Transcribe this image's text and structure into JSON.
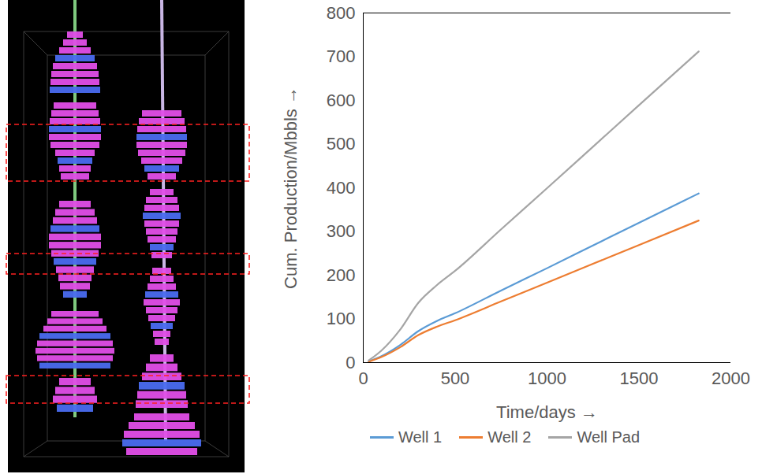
{
  "chart_data": {
    "type": "line",
    "xlabel": "Time/days",
    "ylabel": "Cum. Production/Mbbls",
    "x": [
      30,
      100,
      200,
      300,
      400,
      500,
      750,
      1000,
      1250,
      1500,
      1825
    ],
    "series": [
      {
        "name": "Well 1",
        "color": "#5b9bd5",
        "values": [
          3,
          15,
          40,
          72,
          95,
          113,
          165,
          216,
          268,
          320,
          387
        ]
      },
      {
        "name": "Well 2",
        "color": "#ed7d31",
        "values": [
          2,
          13,
          35,
          63,
          82,
          97,
          140,
          183,
          226,
          269,
          325
        ]
      },
      {
        "name": "Well Pad",
        "color": "#a5a5a5",
        "values": [
          5,
          28,
          75,
          137,
          177,
          210,
          305,
          399,
          494,
          589,
          712
        ]
      }
    ],
    "xlim": [
      0,
      2000
    ],
    "xticks": [
      0,
      500,
      1000,
      1500,
      2000
    ],
    "ylim": [
      0,
      800
    ],
    "yticks": [
      0,
      100,
      200,
      300,
      400,
      500,
      600,
      700,
      800
    ],
    "grid": false,
    "legend": "bottom"
  }
}
